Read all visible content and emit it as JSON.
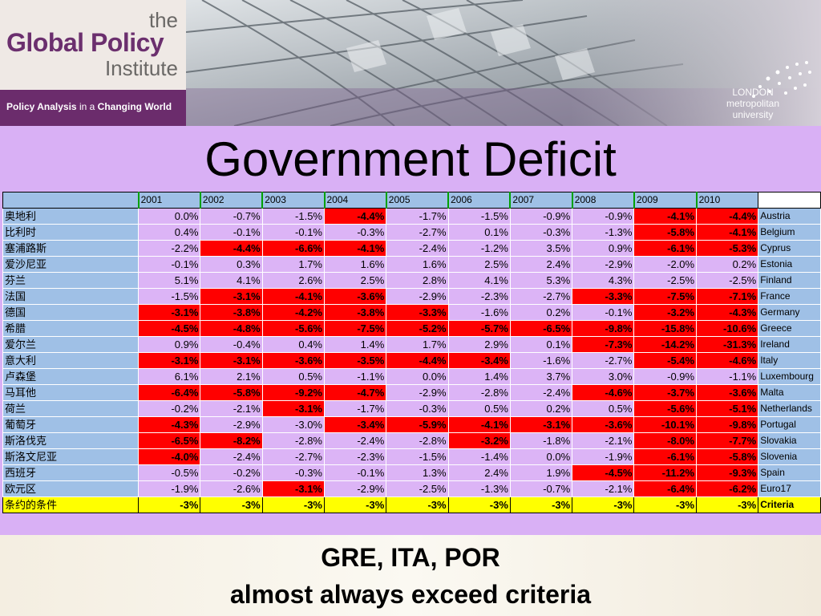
{
  "header": {
    "logo_the": "the",
    "logo_name": "Global Policy",
    "logo_institute": "Institute",
    "tagline_part1": "Policy Analysis",
    "tagline_part2": "in a",
    "tagline_part3": "Changing World",
    "partner": "LONDON metropolitan university"
  },
  "title": "Government Deficit",
  "table": {
    "years": [
      "2001",
      "2002",
      "2003",
      "2004",
      "2005",
      "2006",
      "2007",
      "2008",
      "2009",
      "2010"
    ],
    "rows": [
      {
        "cn": "奥地利",
        "en": "Austria",
        "values": [
          "0.0%",
          "-0.7%",
          "-1.5%",
          "-4.4%",
          "-1.7%",
          "-1.5%",
          "-0.9%",
          "-0.9%",
          "-4.1%",
          "-4.4%"
        ]
      },
      {
        "cn": "比利时",
        "en": "Belgium",
        "values": [
          "0.4%",
          "-0.1%",
          "-0.1%",
          "-0.3%",
          "-2.7%",
          "0.1%",
          "-0.3%",
          "-1.3%",
          "-5.8%",
          "-4.1%"
        ]
      },
      {
        "cn": "塞浦路斯",
        "en": "Cyprus",
        "values": [
          "-2.2%",
          "-4.4%",
          "-6.6%",
          "-4.1%",
          "-2.4%",
          "-1.2%",
          "3.5%",
          "0.9%",
          "-6.1%",
          "-5.3%"
        ]
      },
      {
        "cn": "爱沙尼亚",
        "en": "Estonia",
        "values": [
          "-0.1%",
          "0.3%",
          "1.7%",
          "1.6%",
          "1.6%",
          "2.5%",
          "2.4%",
          "-2.9%",
          "-2.0%",
          "0.2%"
        ]
      },
      {
        "cn": "芬兰",
        "en": "Finland",
        "values": [
          "5.1%",
          "4.1%",
          "2.6%",
          "2.5%",
          "2.8%",
          "4.1%",
          "5.3%",
          "4.3%",
          "-2.5%",
          "-2.5%"
        ]
      },
      {
        "cn": "法国",
        "en": "France",
        "values": [
          "-1.5%",
          "-3.1%",
          "-4.1%",
          "-3.6%",
          "-2.9%",
          "-2.3%",
          "-2.7%",
          "-3.3%",
          "-7.5%",
          "-7.1%"
        ]
      },
      {
        "cn": "德国",
        "en": "Germany",
        "values": [
          "-3.1%",
          "-3.8%",
          "-4.2%",
          "-3.8%",
          "-3.3%",
          "-1.6%",
          "0.2%",
          "-0.1%",
          "-3.2%",
          "-4.3%"
        ]
      },
      {
        "cn": "希腊",
        "en": "Greece",
        "values": [
          "-4.5%",
          "-4.8%",
          "-5.6%",
          "-7.5%",
          "-5.2%",
          "-5.7%",
          "-6.5%",
          "-9.8%",
          "-15.8%",
          "-10.6%"
        ]
      },
      {
        "cn": "爱尔兰",
        "en": "Ireland",
        "values": [
          "0.9%",
          "-0.4%",
          "0.4%",
          "1.4%",
          "1.7%",
          "2.9%",
          "0.1%",
          "-7.3%",
          "-14.2%",
          "-31.3%"
        ]
      },
      {
        "cn": "意大利",
        "en": "Italy",
        "values": [
          "-3.1%",
          "-3.1%",
          "-3.6%",
          "-3.5%",
          "-4.4%",
          "-3.4%",
          "-1.6%",
          "-2.7%",
          "-5.4%",
          "-4.6%"
        ]
      },
      {
        "cn": "卢森堡",
        "en": "Luxembourg",
        "values": [
          "6.1%",
          "2.1%",
          "0.5%",
          "-1.1%",
          "0.0%",
          "1.4%",
          "3.7%",
          "3.0%",
          "-0.9%",
          "-1.1%"
        ]
      },
      {
        "cn": "马耳他",
        "en": "Malta",
        "values": [
          "-6.4%",
          "-5.8%",
          "-9.2%",
          "-4.7%",
          "-2.9%",
          "-2.8%",
          "-2.4%",
          "-4.6%",
          "-3.7%",
          "-3.6%"
        ]
      },
      {
        "cn": "荷兰",
        "en": "Netherlands",
        "values": [
          "-0.2%",
          "-2.1%",
          "-3.1%",
          "-1.7%",
          "-0.3%",
          "0.5%",
          "0.2%",
          "0.5%",
          "-5.6%",
          "-5.1%"
        ]
      },
      {
        "cn": "葡萄牙",
        "en": "Portugal",
        "values": [
          "-4.3%",
          "-2.9%",
          "-3.0%",
          "-3.4%",
          "-5.9%",
          "-4.1%",
          "-3.1%",
          "-3.6%",
          "-10.1%",
          "-9.8%"
        ]
      },
      {
        "cn": "斯洛伐克",
        "en": "Slovakia",
        "values": [
          "-6.5%",
          "-8.2%",
          "-2.8%",
          "-2.4%",
          "-2.8%",
          "-3.2%",
          "-1.8%",
          "-2.1%",
          "-8.0%",
          "-7.7%"
        ]
      },
      {
        "cn": "斯洛文尼亚",
        "en": "Slovenia",
        "values": [
          "-4.0%",
          "-2.4%",
          "-2.7%",
          "-2.3%",
          "-1.5%",
          "-1.4%",
          "0.0%",
          "-1.9%",
          "-6.1%",
          "-5.8%"
        ]
      },
      {
        "cn": "西班牙",
        "en": "Spain",
        "values": [
          "-0.5%",
          "-0.2%",
          "-0.3%",
          "-0.1%",
          "1.3%",
          "2.4%",
          "1.9%",
          "-4.5%",
          "-11.2%",
          "-9.3%"
        ]
      },
      {
        "cn": "欧元区",
        "en": "Euro17",
        "values": [
          "-1.9%",
          "-2.6%",
          "-3.1%",
          "-2.9%",
          "-2.5%",
          "-1.3%",
          "-0.7%",
          "-2.1%",
          "-6.4%",
          "-6.2%"
        ]
      }
    ],
    "criteria": {
      "cn": "条约的条件",
      "en": "Criteria",
      "values": [
        "-3%",
        "-3%",
        "-3%",
        "-3%",
        "-3%",
        "-3%",
        "-3%",
        "-3%",
        "-3%",
        "-3%"
      ]
    }
  },
  "colors": {
    "exceed": "#ff0000",
    "cell": "#dcb4f6",
    "label": "#9fc0e6",
    "criteria": "#ffff00"
  },
  "footer": {
    "line1": "GRE, ITA, POR",
    "line2": "almost always exceed criteria"
  }
}
